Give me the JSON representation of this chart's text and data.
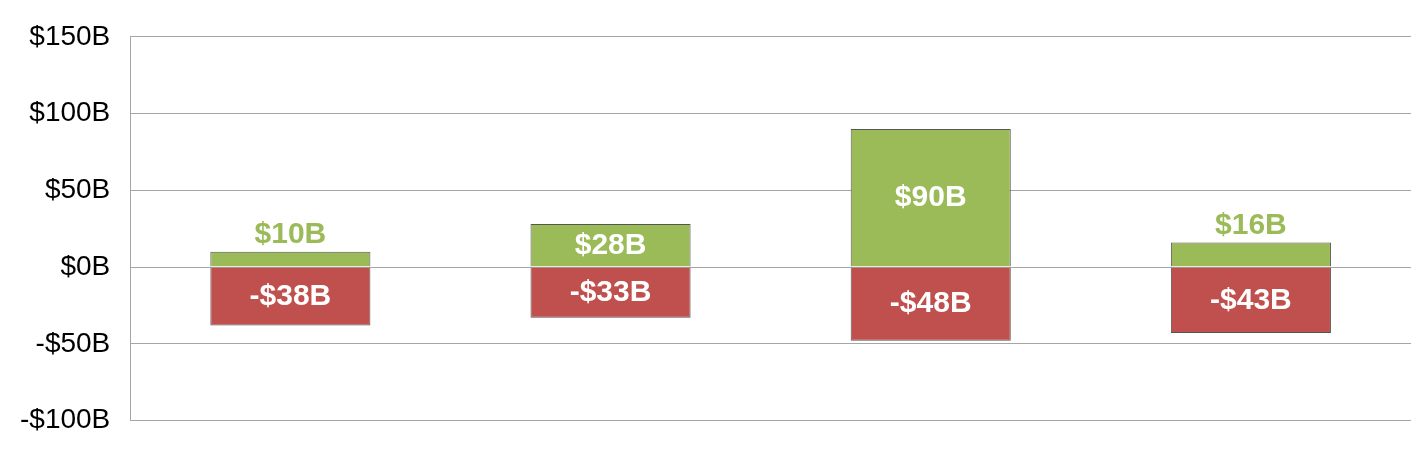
{
  "chart_data": {
    "type": "bar",
    "stacked": true,
    "categories": [
      null,
      null,
      null,
      null
    ],
    "series": [
      {
        "color": "#9bbb59",
        "values": [
          10,
          28,
          90,
          16
        ],
        "value_labels": [
          "$10B",
          "$28B",
          "$90B",
          "$16B"
        ]
      },
      {
        "color": "#c0504d",
        "values": [
          -38,
          -33,
          -48,
          -43
        ],
        "value_labels": [
          "-$38B",
          "-$33B",
          "-$48B",
          "-$43B"
        ]
      }
    ],
    "ylim": [
      -100,
      150
    ],
    "yticks": [
      {
        "value": -100,
        "label": "-$100B"
      },
      {
        "value": -50,
        "label": "-$50B"
      },
      {
        "value": 0,
        "label": "$0B"
      },
      {
        "value": 50,
        "label": "$50B"
      },
      {
        "value": 100,
        "label": "$100B"
      },
      {
        "value": 150,
        "label": "$150B"
      }
    ],
    "grid": "y",
    "legend": false
  }
}
